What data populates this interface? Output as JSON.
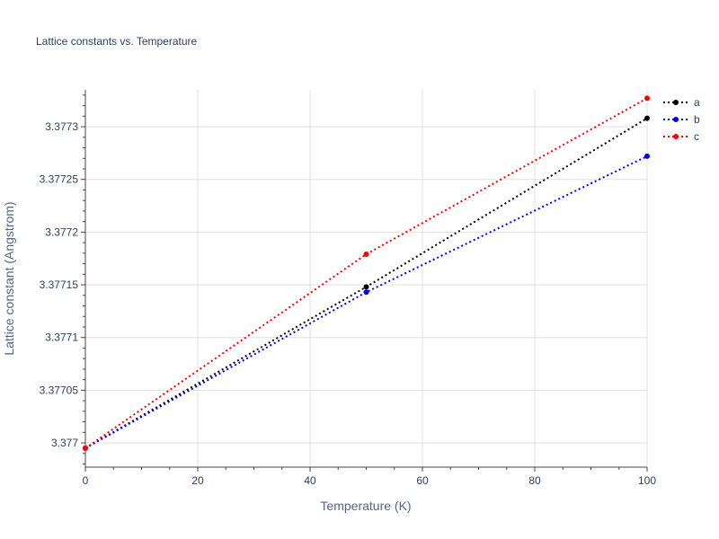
{
  "chart_data": {
    "type": "line",
    "title": "Lattice constants vs. Temperature",
    "xlabel": "Temperature (K)",
    "ylabel": "Lattice constant (Angstrom)",
    "xlim": [
      0,
      100
    ],
    "ylim": [
      3.376977,
      3.377335
    ],
    "x_ticks": [
      0,
      20,
      40,
      60,
      80,
      100
    ],
    "x_tick_labels": [
      "0",
      "20",
      "40",
      "60",
      "80",
      "100"
    ],
    "y_ticks": [
      3.377,
      3.37705,
      3.3771,
      3.37715,
      3.3772,
      3.37725,
      3.3773
    ],
    "y_tick_labels": [
      "3.377",
      "3.37705",
      "3.3771",
      "3.37715",
      "3.3772",
      "3.37725",
      "3.3773"
    ],
    "grid": true,
    "legend_position": "top-right",
    "line_style": "dotted",
    "x": [
      0,
      50,
      100
    ],
    "series": [
      {
        "name": "a",
        "color": "#000000",
        "values": [
          3.376995,
          3.377148,
          3.377308
        ]
      },
      {
        "name": "b",
        "color": "#0000ff",
        "values": [
          3.376995,
          3.377143,
          3.377272
        ]
      },
      {
        "name": "c",
        "color": "#ff0000",
        "values": [
          3.376995,
          3.377179,
          3.377327
        ]
      }
    ]
  }
}
